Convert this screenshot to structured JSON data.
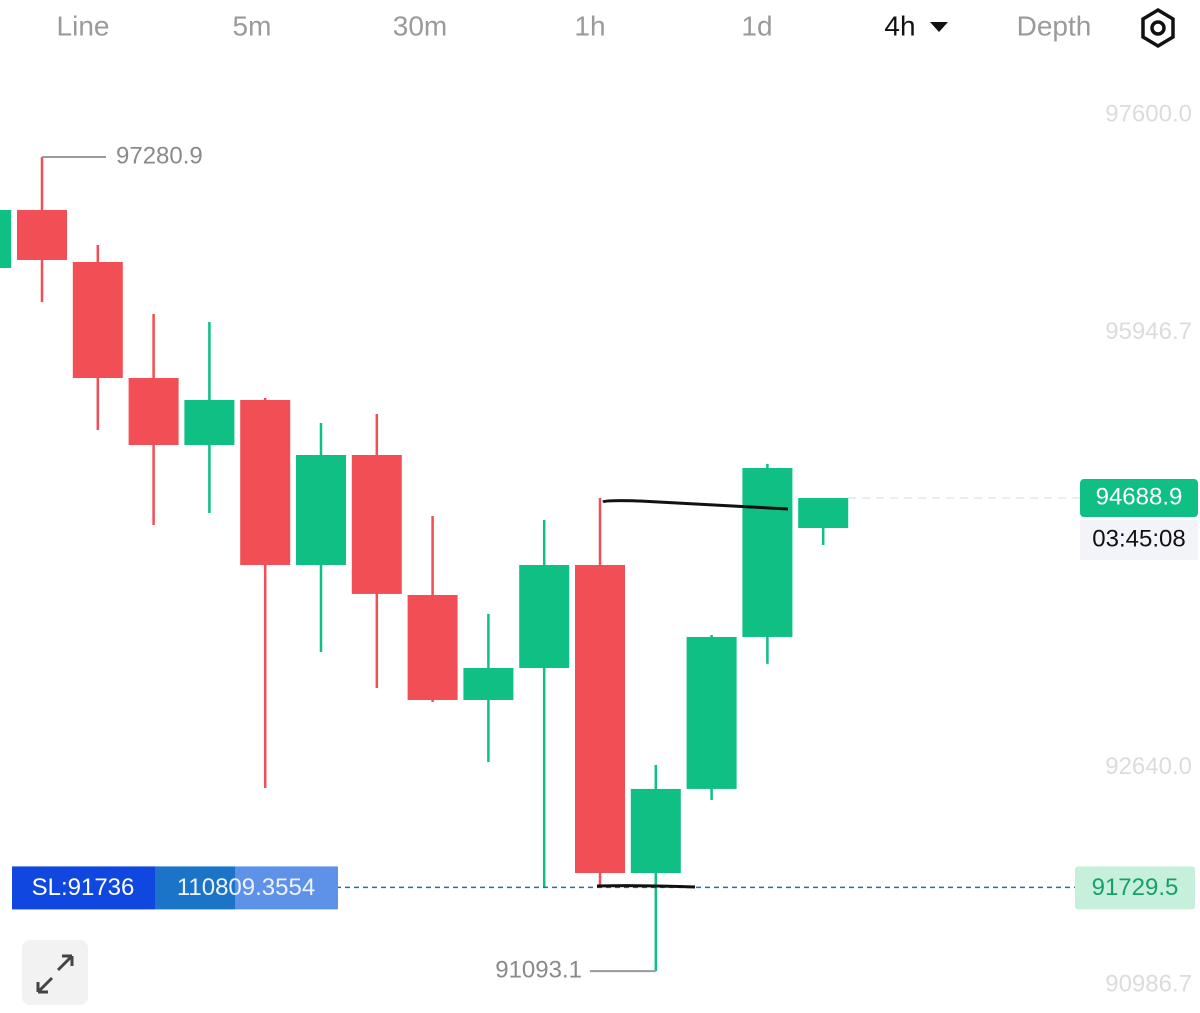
{
  "tabs": [
    {
      "label": "Line",
      "active": false
    },
    {
      "label": "5m",
      "active": false
    },
    {
      "label": "30m",
      "active": false
    },
    {
      "label": "1h",
      "active": false
    },
    {
      "label": "1d",
      "active": false
    },
    {
      "label": "4h",
      "active": true
    },
    {
      "label": "Depth",
      "active": false
    }
  ],
  "chart_data": {
    "type": "candlestick",
    "up_color": "#0fbf83",
    "down_color": "#f14f55",
    "open": [
      96437,
      96878,
      96483,
      95601,
      95092,
      95434,
      94180,
      95016,
      93952,
      93154,
      93397,
      94180,
      91839,
      92478,
      93633,
      94461
    ],
    "high": [
      96878,
      97280.9,
      96612,
      96088,
      96027,
      95449,
      95259,
      95328,
      94552,
      93808,
      94522,
      94689,
      92660,
      93648,
      94948,
      94674
    ],
    "low": [
      96437,
      96179,
      95206,
      94484,
      94575,
      92485,
      93519,
      93245,
      93139,
      92683,
      91725,
      91725,
      91093.1,
      92394,
      93428,
      94332
    ],
    "close": [
      96878,
      96498,
      95601,
      95092,
      95434,
      94180,
      95016,
      93960,
      93154,
      93397,
      94180,
      91839,
      92478,
      93633,
      94917,
      94688.9
    ],
    "ylim": [
      90775,
      98018
    ],
    "yticks": [
      {
        "value": 97600,
        "label": "97600.0"
      },
      95946.7,
      {
        "value": 92640,
        "label": "92640.0"
      },
      90986.7
    ],
    "countdown": "03:45:08",
    "sl_label": "SL:91736",
    "position_label": "110809.3554",
    "order_price": 91729.5
  }
}
